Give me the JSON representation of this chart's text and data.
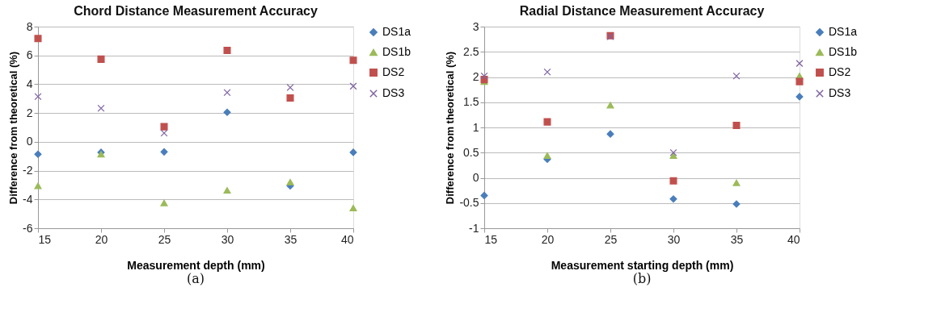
{
  "chart_data": [
    {
      "type": "scatter",
      "title": "Chord Distance Measurement Accuracy",
      "xlabel": "Measurement depth (mm)",
      "ylabel": "Difference from theoretical (%)",
      "annotations": [
        "(a)"
      ],
      "x": [
        15,
        20,
        25,
        30,
        35,
        40
      ],
      "xlim": [
        15,
        40
      ],
      "xticks": [
        15,
        20,
        25,
        30,
        35,
        40
      ],
      "ylim": [
        -6,
        8
      ],
      "yticks": [
        -6,
        -4,
        -2,
        0,
        2,
        4,
        6,
        8
      ],
      "grid": "y",
      "legend": "right",
      "series": [
        {
          "name": "DS1a",
          "color": "#4a7ebb",
          "marker": "diamond",
          "values": [
            -0.86,
            -0.73,
            -0.7,
            2.05,
            -3.06,
            -0.73
          ]
        },
        {
          "name": "DS1b",
          "color": "#9bbb59",
          "marker": "triangle",
          "values": [
            -3.06,
            -0.86,
            -4.25,
            -3.37,
            -2.8,
            -4.6
          ]
        },
        {
          "name": "DS2",
          "color": "#c0504d",
          "marker": "square",
          "values": [
            7.17,
            5.74,
            1.05,
            6.35,
            3.04,
            5.66
          ]
        },
        {
          "name": "DS3",
          "color": "#8064a2",
          "marker": "cross",
          "values": [
            3.14,
            2.33,
            0.61,
            3.42,
            3.77,
            3.86
          ]
        }
      ]
    },
    {
      "type": "scatter",
      "title": "Radial Distance Measurement Accuracy",
      "xlabel": "Measurement starting depth (mm)",
      "ylabel": "Difference from theoretical (%)",
      "annotations": [
        "(b)"
      ],
      "x": [
        15,
        20,
        25,
        30,
        35,
        40
      ],
      "xlim": [
        15,
        40
      ],
      "xticks": [
        15,
        20,
        25,
        30,
        35,
        40
      ],
      "ylim": [
        -1,
        3
      ],
      "yticks": [
        -1,
        -0.5,
        0,
        0.5,
        1,
        1.5,
        2,
        2.5,
        3
      ],
      "grid": "y",
      "legend": "right",
      "series": [
        {
          "name": "DS1a",
          "color": "#4a7ebb",
          "marker": "diamond",
          "values": [
            -0.35,
            0.37,
            0.87,
            -0.42,
            -0.52,
            1.61
          ]
        },
        {
          "name": "DS1b",
          "color": "#9bbb59",
          "marker": "triangle",
          "values": [
            1.91,
            0.44,
            1.44,
            0.44,
            -0.1,
            2.02
          ]
        },
        {
          "name": "DS2",
          "color": "#c0504d",
          "marker": "square",
          "values": [
            1.95,
            1.11,
            2.82,
            -0.06,
            1.04,
            1.91
          ]
        },
        {
          "name": "DS3",
          "color": "#8064a2",
          "marker": "cross",
          "values": [
            2.02,
            2.1,
            2.8,
            0.5,
            2.02,
            2.27
          ]
        }
      ]
    }
  ]
}
